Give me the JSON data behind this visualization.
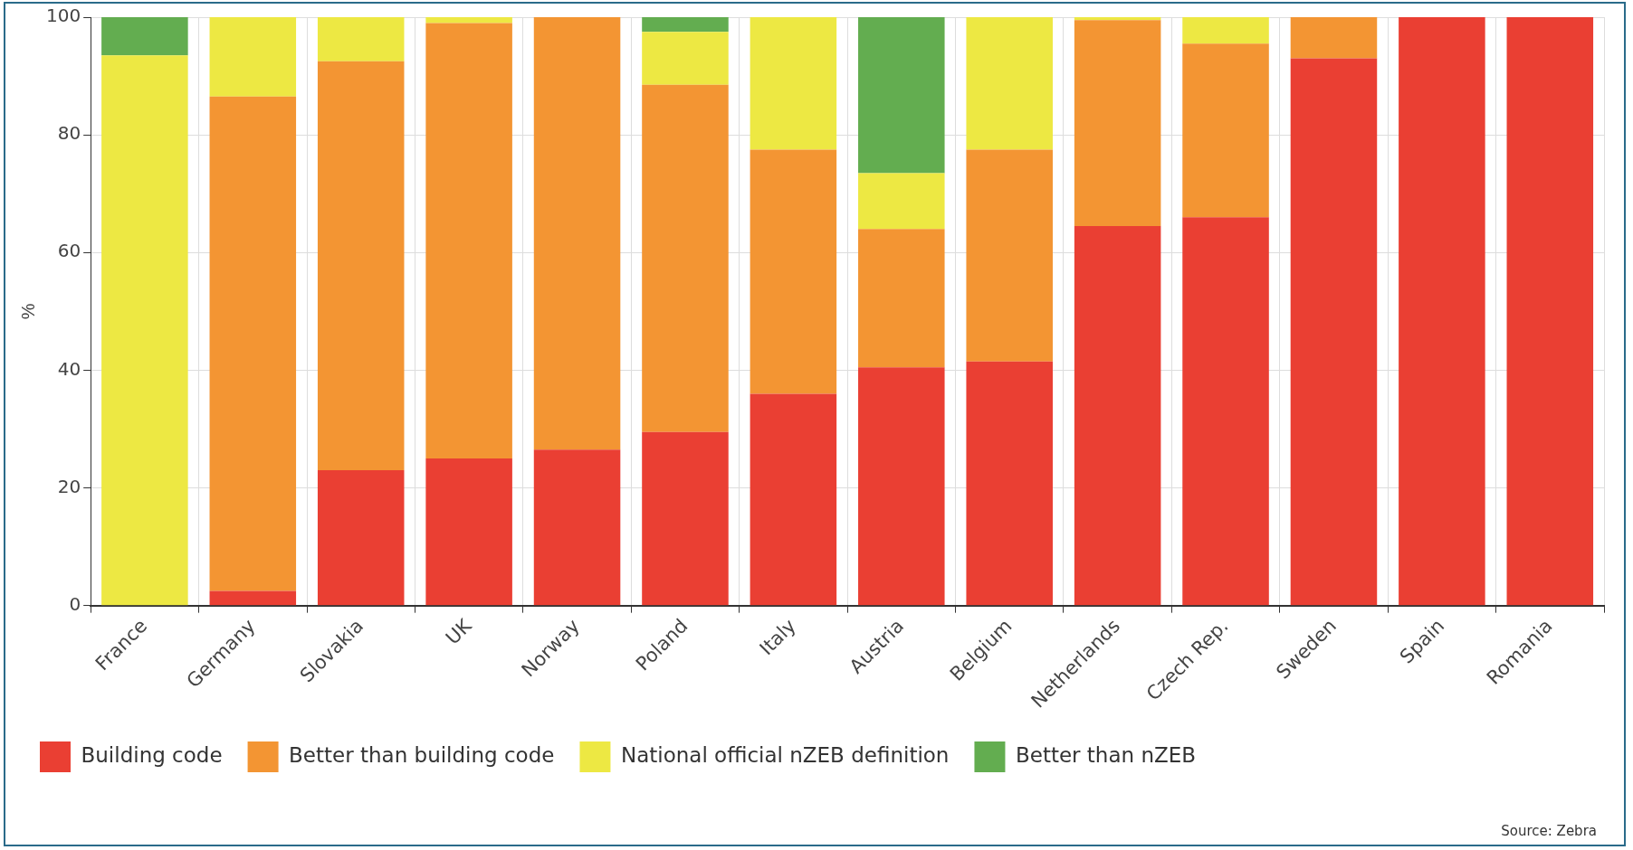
{
  "chart_data": {
    "type": "bar",
    "stacked": true,
    "ylabel": "%",
    "categories": [
      "France",
      "Germany",
      "Slovakia",
      "UK",
      "Norway",
      "Poland",
      "Italy",
      "Austria",
      "Belgium",
      "Netherlands",
      "Czech Rep.",
      "Sweden",
      "Spain",
      "Romania"
    ],
    "series": [
      {
        "name": "Building code",
        "color": "#ea3f33",
        "values": [
          0,
          2.5,
          23,
          25,
          26.5,
          29.5,
          36,
          40.5,
          41.5,
          64.5,
          66,
          93,
          100,
          100
        ]
      },
      {
        "name": "Better than building code",
        "color": "#f39533",
        "values": [
          0,
          84,
          69.5,
          74,
          73.5,
          59,
          41.5,
          23.5,
          36,
          35,
          29.5,
          7,
          0,
          0
        ]
      },
      {
        "name": "National official nZEB definition",
        "color": "#ede843",
        "values": [
          93.5,
          13.5,
          7.5,
          1,
          0,
          9,
          22.5,
          9.5,
          22.5,
          0.5,
          4.5,
          0,
          0,
          0
        ]
      },
      {
        "name": "Better than nZEB",
        "color": "#63ad50",
        "values": [
          6.5,
          0,
          0,
          0,
          0,
          2.5,
          0,
          26.5,
          0,
          0,
          0,
          0,
          0,
          0
        ]
      }
    ],
    "ylim": [
      0,
      100
    ],
    "yticks": [
      0,
      20,
      40,
      60,
      80,
      100
    ],
    "grid": true,
    "legend": "bottom",
    "annotations": [
      "Source: Zebra"
    ]
  }
}
